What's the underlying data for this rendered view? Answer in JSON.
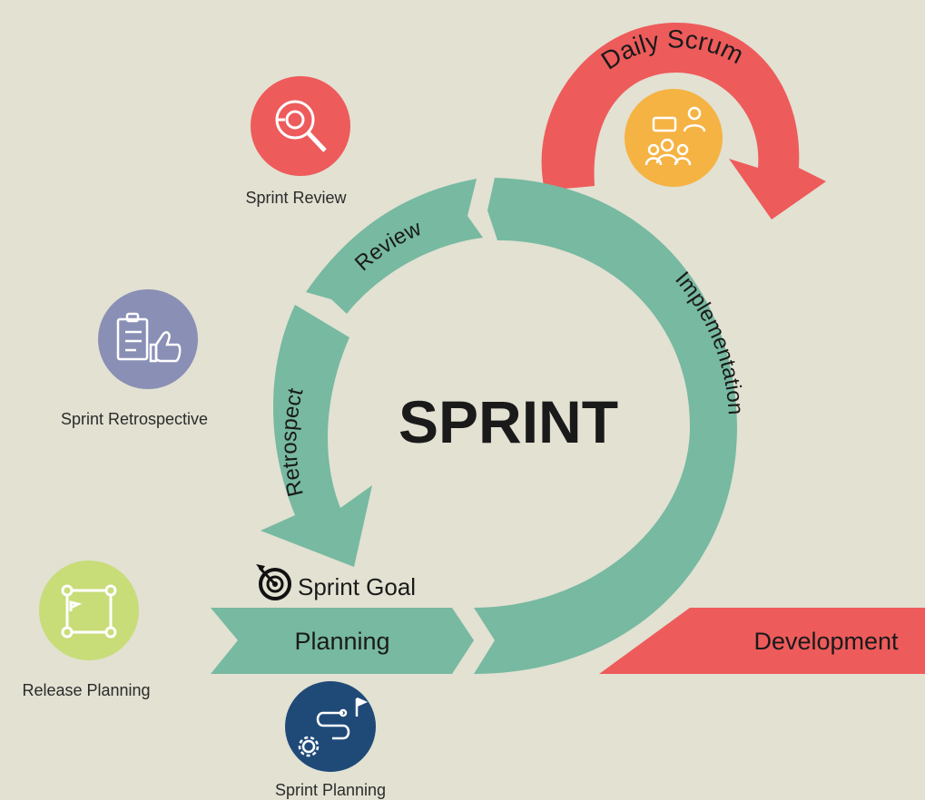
{
  "center": {
    "title": "SPRINT"
  },
  "phases": {
    "review": "Review",
    "retrospect": "Retrospect",
    "implementation": "Implementation",
    "planning": "Planning",
    "development": "Development",
    "daily_scrum": "Daily Scrum",
    "sprint_goal": "Sprint Goal"
  },
  "events": [
    {
      "label": "Sprint Review",
      "icon": "magnifier-icon",
      "color": "#ee5b5b"
    },
    {
      "label": "Sprint Retrospective",
      "icon": "clipboard-thumbs-up-icon",
      "color": "#8a8fb6"
    },
    {
      "label": "Release Planning",
      "icon": "roadmap-icon",
      "color": "#c8dc78"
    },
    {
      "label": "Sprint Planning",
      "icon": "route-flag-gear-icon",
      "color": "#1f4a78"
    },
    {
      "label": "Daily Scrum",
      "icon": "team-meeting-icon",
      "color": "#f5b343"
    }
  ],
  "colors": {
    "background": "#e2e1d2",
    "cycle_green": "#77b9a1",
    "scrum_red": "#ee5b5b",
    "text_dark": "#111111"
  }
}
